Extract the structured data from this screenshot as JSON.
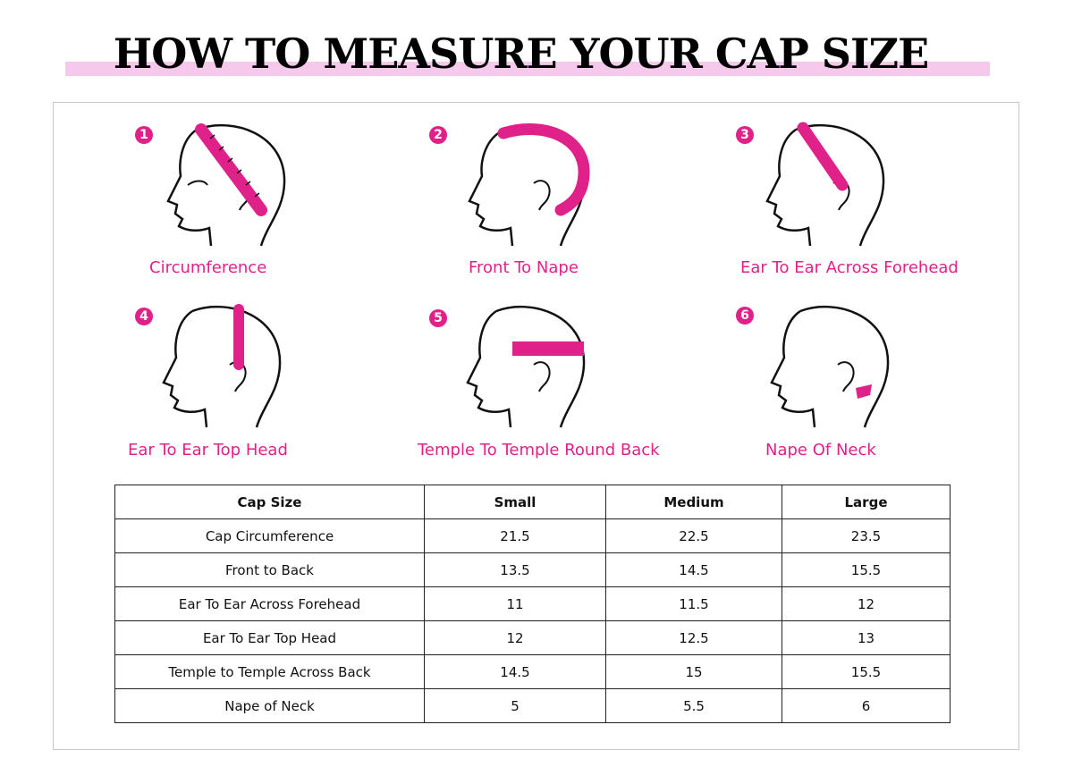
{
  "title": "HOW TO MEASURE YOUR CAP SIZE",
  "colors": {
    "accent": "#e0218a",
    "band": "#f6c9ec"
  },
  "steps": [
    {
      "number": "1",
      "caption": "Circumference"
    },
    {
      "number": "2",
      "caption": "Front To Nape"
    },
    {
      "number": "3",
      "caption": "Ear To Ear Across Forehead"
    },
    {
      "number": "4",
      "caption": "Ear To Ear Top Head"
    },
    {
      "number": "5",
      "caption": "Temple To Temple Round Back"
    },
    {
      "number": "6",
      "caption": "Nape Of Neck"
    }
  ],
  "table": {
    "headers": [
      "Cap Size",
      "Small",
      "Medium",
      "Large"
    ],
    "rows": [
      [
        "Cap Circumference",
        "21.5",
        "22.5",
        "23.5"
      ],
      [
        "Front to Back",
        "13.5",
        "14.5",
        "15.5"
      ],
      [
        "Ear To Ear Across Forehead",
        "11",
        "11.5",
        "12"
      ],
      [
        "Ear To Ear Top Head",
        "12",
        "12.5",
        "13"
      ],
      [
        "Temple to Temple Across Back",
        "14.5",
        "15",
        "15.5"
      ],
      [
        "Nape of Neck",
        "5",
        "5.5",
        "6"
      ]
    ]
  }
}
